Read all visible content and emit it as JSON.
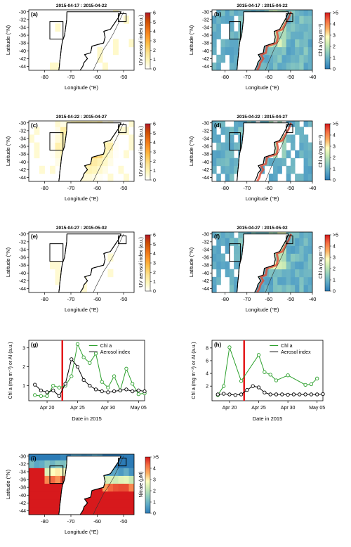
{
  "colors": {
    "aerosol_scale": [
      "#ffffff",
      "#fff7bc",
      "#fee391",
      "#fec44f",
      "#fe9929",
      "#ec7014",
      "#cc4c02",
      "#b2182b"
    ],
    "chl_scale": [
      "#2c7bb6",
      "#5aa6c6",
      "#8ccbbf",
      "#c7e9b4",
      "#ffffbf",
      "#fdae61",
      "#f46d43",
      "#d7191c"
    ],
    "chl_line": "#2ca02c",
    "aerosol_line": "#000000",
    "event_line": "#e41a1c",
    "land": "#ffffff"
  },
  "maps": [
    {
      "panel": "(a)",
      "title": "2015-04-17  :  2015-04-22",
      "xlabel": "Longitude (°E)",
      "ylabel": "Latitude (°N)",
      "colorbar_label": "UV aerosol index (a.u.)",
      "xticks": [
        "-80",
        "-70",
        "-60",
        "-50"
      ],
      "yticks": [
        "-30",
        "-32",
        "-34",
        "-36",
        "-38",
        "-40",
        "-42",
        "-44"
      ],
      "cbar_ticks": [
        "0",
        "1",
        "2",
        "3",
        "4",
        "5",
        "6"
      ],
      "scale": "aerosol"
    },
    {
      "panel": "(b)",
      "title": "2015-04-17  :  2015-04-22",
      "xlabel": "Longitude (°E)",
      "ylabel": "Latitude (°N)",
      "colorbar_label": "Chl a (mg m⁻³)",
      "xticks": [
        "-80",
        "-70",
        "-60",
        "-50",
        "-40"
      ],
      "yticks": [
        "-30",
        "-32",
        "-34",
        "-36",
        "-38",
        "-40",
        "-42",
        "-44"
      ],
      "cbar_ticks": [
        "0",
        "1",
        "2",
        "3",
        "4",
        ">5"
      ],
      "scale": "chl"
    },
    {
      "panel": "(c)",
      "title": "2015-04-22  :  2015-04-27",
      "xlabel": "Longitude (°E)",
      "ylabel": "Latitude (°N)",
      "colorbar_label": "UV aerosol index (a.u.)",
      "xticks": [
        "-80",
        "-70",
        "-60",
        "-50"
      ],
      "yticks": [
        "-30",
        "-32",
        "-34",
        "-36",
        "-38",
        "-40",
        "-42",
        "-44"
      ],
      "cbar_ticks": [
        "0",
        "1",
        "2",
        "3",
        "4",
        "5",
        "6"
      ],
      "scale": "aerosol"
    },
    {
      "panel": "(d)",
      "title": "2015-04-22  :  2015-04-27",
      "xlabel": "Longitude (°E)",
      "ylabel": "Latitude (°N)",
      "colorbar_label": "Chl a (mg m⁻³)",
      "xticks": [
        "-80",
        "-70",
        "-60",
        "-50",
        "-40"
      ],
      "yticks": [
        "-30",
        "-32",
        "-34",
        "-36",
        "-38",
        "-40",
        "-42",
        "-44"
      ],
      "cbar_ticks": [
        "0",
        "1",
        "2",
        "3",
        "4",
        ">5"
      ],
      "scale": "chl"
    },
    {
      "panel": "(e)",
      "title": "2015-04-27  :  2015-05-02",
      "xlabel": "Longitude (°E)",
      "ylabel": "Latitude (°N)",
      "colorbar_label": "UV aerosol index (a.u.)",
      "xticks": [
        "-80",
        "-70",
        "-60",
        "-50"
      ],
      "yticks": [
        "-30",
        "-32",
        "-34",
        "-36",
        "-38",
        "-40",
        "-42",
        "-44"
      ],
      "cbar_ticks": [
        "0",
        "1",
        "2",
        "3",
        "4",
        "5",
        "6"
      ],
      "scale": "aerosol"
    },
    {
      "panel": "(f)",
      "title": "2015-04-27  :  2015-05-02",
      "xlabel": "Longitude (°E)",
      "ylabel": "Latitude (°N)",
      "colorbar_label": "Chl a (mg m⁻³)",
      "xticks": [
        "-80",
        "-70",
        "-60",
        "-50",
        "-40"
      ],
      "yticks": [
        "-30",
        "-32",
        "-34",
        "-36",
        "-38",
        "-40",
        "-42",
        "-44"
      ],
      "cbar_ticks": [
        "0",
        "1",
        "2",
        "3",
        "4",
        ">5"
      ],
      "scale": "chl"
    },
    {
      "panel": "(i)",
      "title": "",
      "xlabel": "Longitude (°E)",
      "ylabel": "Latitude (°N)",
      "colorbar_label": "Nitrate (µM)",
      "xticks": [
        "-80",
        "-70",
        "-60",
        "-50"
      ],
      "yticks": [
        "-30",
        "-32",
        "-34",
        "-36",
        "-38",
        "-40",
        "-42",
        "-44"
      ],
      "cbar_ticks": [
        "0",
        "1",
        "2",
        "3",
        "4",
        ">5"
      ],
      "scale": "chl"
    }
  ],
  "chart_data": [
    {
      "type": "line",
      "panel": "(g)",
      "xlabel": "Date in 2015",
      "ylabel": "Chl a (mg m⁻³) or AI (a.u.)",
      "xticks": [
        "Apr 20",
        "Apr 25",
        "Apr 30",
        "May 05"
      ],
      "xtick_days": [
        20,
        25,
        30,
        35
      ],
      "yticks": [
        "1",
        "2",
        "3"
      ],
      "xlim": [
        17,
        36
      ],
      "ylim": [
        0.2,
        3.4
      ],
      "event_day": 22.5,
      "legend": [
        "Chl a",
        "Aerosol index"
      ],
      "series": [
        {
          "name": "Chl a",
          "color": "#2ca02c",
          "x": [
            18,
            19,
            20,
            21,
            22,
            23,
            24,
            25,
            26,
            27,
            28,
            29,
            30,
            31,
            32,
            33,
            34,
            35,
            36
          ],
          "y": [
            0.5,
            0.45,
            0.45,
            1.0,
            0.9,
            1.0,
            1.5,
            3.2,
            2.5,
            2.2,
            2.7,
            1.2,
            0.9,
            1.5,
            0.75,
            1.9,
            1.1,
            0.55,
            0.6
          ]
        },
        {
          "name": "Aerosol index",
          "color": "#000000",
          "x": [
            18,
            19,
            20,
            21,
            22,
            23,
            24,
            25,
            26,
            27,
            28,
            29,
            30,
            31,
            32,
            33,
            34,
            35,
            36
          ],
          "y": [
            1.05,
            0.75,
            0.65,
            0.75,
            0.45,
            1.1,
            2.4,
            2.0,
            1.3,
            1.0,
            0.8,
            0.7,
            0.65,
            0.7,
            0.75,
            0.8,
            0.7,
            0.75,
            0.7
          ]
        }
      ]
    },
    {
      "type": "line",
      "panel": "(h)",
      "xlabel": "Date in 2015",
      "ylabel": "Chl a (mg m⁻³) or AI (a.u.)",
      "xticks": [
        "Apr 20",
        "Apr 25",
        "Apr 30",
        "May 05"
      ],
      "xtick_days": [
        20,
        25,
        30,
        35
      ],
      "yticks": [
        "2",
        "4",
        "6",
        "8"
      ],
      "xlim": [
        17,
        36
      ],
      "ylim": [
        -0.3,
        9.2
      ],
      "event_day": 22.5,
      "legend": [
        "Chl a",
        "Aerosol index"
      ],
      "series": [
        {
          "name": "Chl a",
          "color": "#2ca02c",
          "x": [
            18,
            19,
            20,
            22,
            25,
            26,
            27,
            28,
            30,
            33,
            34,
            35
          ],
          "y": [
            0.6,
            2.0,
            8.1,
            2.8,
            6.9,
            4.2,
            3.8,
            2.9,
            3.7,
            2.2,
            2.3,
            3.2
          ]
        },
        {
          "name": "Aerosol index",
          "color": "#000000",
          "x": [
            18,
            19,
            20,
            21,
            22,
            23,
            24,
            25,
            26,
            27,
            28,
            29,
            30,
            31,
            32,
            33,
            34,
            35,
            36
          ],
          "y": [
            0.7,
            0.8,
            0.7,
            0.6,
            0.7,
            1.4,
            2.0,
            1.8,
            1.0,
            0.7,
            0.7,
            0.7,
            0.65,
            0.7,
            0.7,
            0.7,
            0.7,
            0.7,
            0.75
          ]
        }
      ]
    }
  ]
}
